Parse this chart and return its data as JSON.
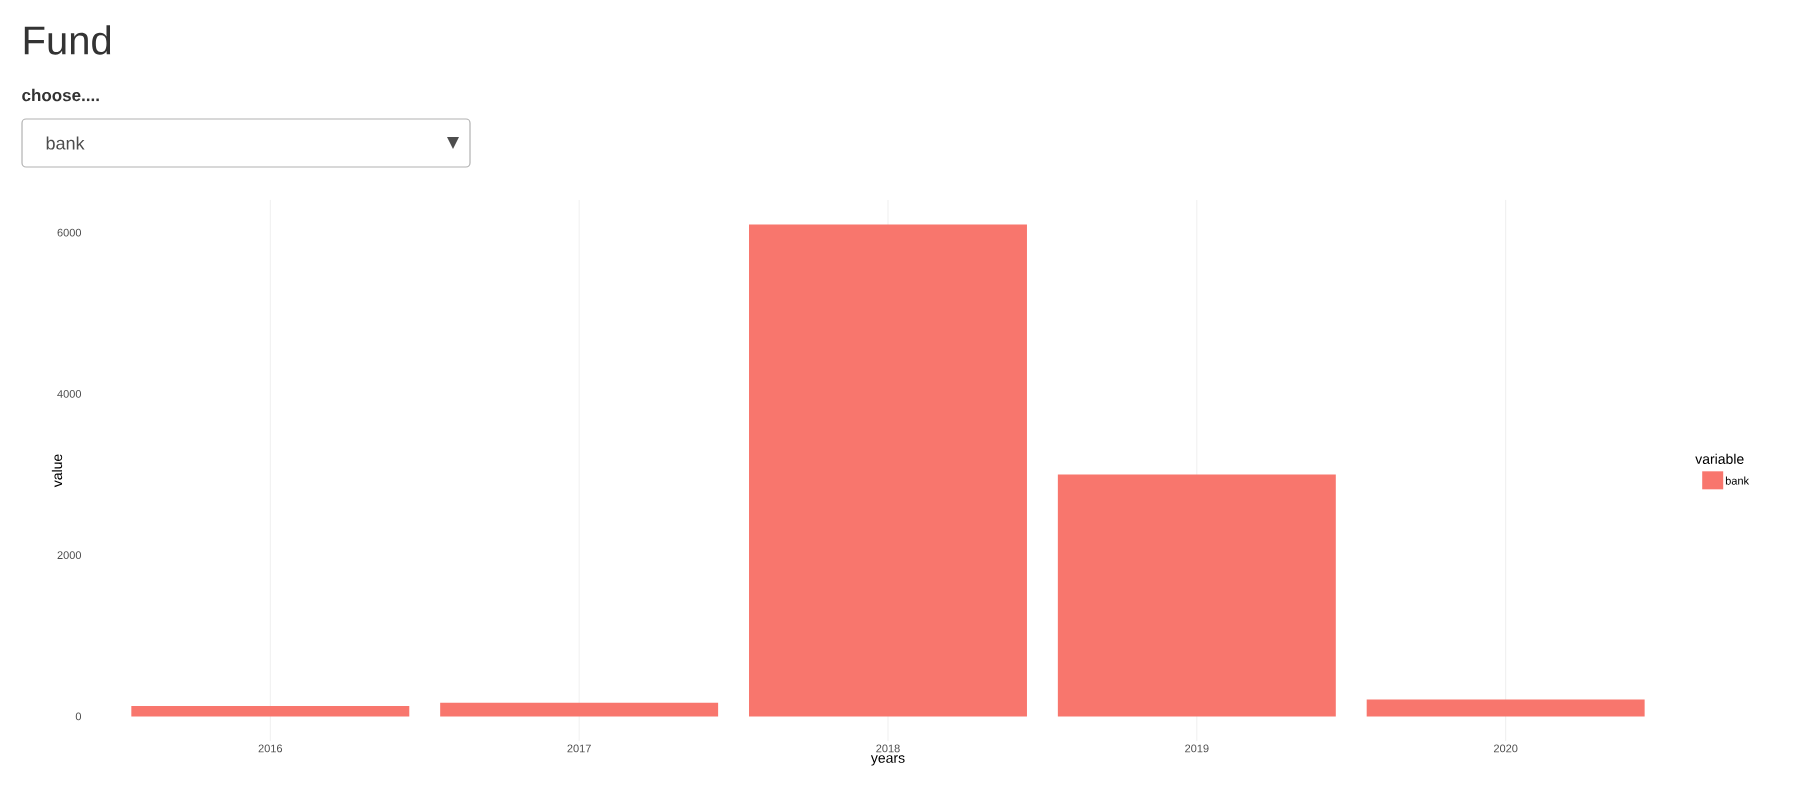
{
  "chart_data": {
    "type": "bar",
    "title": "Fund",
    "subtitle": "choose....",
    "annotations": [
      "bank"
    ],
    "categories": [
      "2016",
      "2017",
      "2018",
      "2019",
      "2020"
    ],
    "series": [
      {
        "name": "bank",
        "color": "#f8766d",
        "values": [
          130,
          170,
          6100,
          3000,
          210
        ]
      }
    ],
    "xlabel": "years",
    "ylabel": "value",
    "legend_title": "variable",
    "legend": "right",
    "ylim": [
      -305,
      6405
    ],
    "yticks": [
      0,
      2000,
      4000,
      6000
    ],
    "grid": "x"
  }
}
